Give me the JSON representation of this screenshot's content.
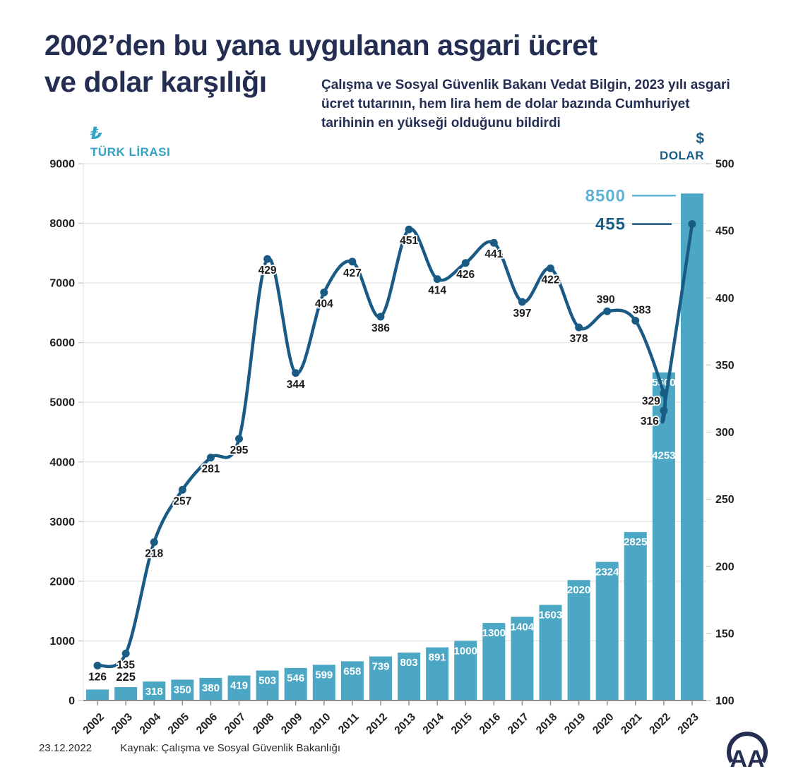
{
  "header": {
    "title_line1": "2002’den bu yana uygulanan asgari ücret",
    "title_line2": "ve dolar karşılığı",
    "subtitle": "Çalışma ve Sosyal Güvenlik Bakanı Vedat Bilgin, 2023 yılı asgari ücret tutarının, hem lira hem de dolar bazında Cumhuriyet tarihinin en yükseği olduğunu bildirdi"
  },
  "chart_data": {
    "type": "bar",
    "title": "2002’den bu yana uygulanan asgari ücret ve dolar karşılığı",
    "categories": [
      "2002",
      "2003",
      "2004",
      "2005",
      "2006",
      "2007",
      "2008",
      "2009",
      "2010",
      "2011",
      "2012",
      "2013",
      "2014",
      "2015",
      "2016",
      "2017",
      "2018",
      "2019",
      "2020",
      "2021",
      "2022",
      "2023"
    ],
    "left_axis": {
      "symbol": "₺",
      "title": "TÜRK LİRASI",
      "min": 0,
      "max": 9000,
      "ticks": [
        9000,
        8000,
        7000,
        6000,
        5000,
        4000,
        3000,
        2000,
        1000,
        0
      ]
    },
    "right_axis": {
      "symbol": "$",
      "title": "DOLAR",
      "min": 100,
      "max": 500,
      "ticks": [
        500,
        450,
        400,
        350,
        300,
        250,
        200,
        150,
        100
      ]
    },
    "series": [
      {
        "name": "Asgari ücret (Türk Lirası)",
        "type": "bar",
        "values": [
          184,
          225,
          318,
          350,
          380,
          419,
          503,
          546,
          599,
          658,
          739,
          803,
          891,
          1000,
          1300,
          1404,
          1603,
          2020,
          2324,
          2825,
          5500,
          8500
        ],
        "bar_labels": [
          "",
          "225",
          "318",
          "350",
          "380",
          "419",
          "503",
          "546",
          "599",
          "658",
          "739",
          "803",
          "891",
          "1000",
          "1300",
          "1404",
          "1603",
          "2020",
          "2324",
          "2825",
          "5500",
          ""
        ],
        "extra_bar_labels": [
          {
            "category": "2022",
            "text": "4253",
            "value": 4253
          }
        ]
      },
      {
        "name": "Dolar karşılığı",
        "type": "line",
        "points": [
          {
            "category": "2002",
            "value": 126
          },
          {
            "category": "2003",
            "value": 135
          },
          {
            "category": "2004",
            "value": 218
          },
          {
            "category": "2005",
            "value": 257
          },
          {
            "category": "2006",
            "value": 281
          },
          {
            "category": "2007",
            "value": 295
          },
          {
            "category": "2008",
            "value": 429
          },
          {
            "category": "2009",
            "value": 344
          },
          {
            "category": "2010",
            "value": 404
          },
          {
            "category": "2011",
            "value": 427
          },
          {
            "category": "2012",
            "value": 386
          },
          {
            "category": "2013",
            "value": 451
          },
          {
            "category": "2014",
            "value": 414
          },
          {
            "category": "2015",
            "value": 426
          },
          {
            "category": "2016",
            "value": 441
          },
          {
            "category": "2017",
            "value": 397
          },
          {
            "category": "2018",
            "value": 422
          },
          {
            "category": "2019",
            "value": 378
          },
          {
            "category": "2020",
            "value": 390
          },
          {
            "category": "2021",
            "value": 383
          },
          {
            "category": "2022",
            "value": 329
          },
          {
            "category": "2022",
            "value": 316
          },
          {
            "category": "2023",
            "value": 455
          }
        ]
      }
    ],
    "annotations": {
      "wage_2023_callout": "8500",
      "dollar_2023_callout": "455"
    },
    "colors": {
      "bar": "#4ca7c5",
      "line": "#1a5b86",
      "navy_text": "#1a5c88",
      "teal_text": "#5fb2d6",
      "title_navy": "#242e52",
      "header_teal": "#31a2c3",
      "grid": "#e4e4e4",
      "axis": "#8f8f8f",
      "label_dark": "#1a1a1a"
    }
  },
  "footer": {
    "date": "23.12.2022",
    "source": "Kaynak: Çalışma ve Sosyal Güvenlik Bakanlığı",
    "logo_text": "AA"
  }
}
